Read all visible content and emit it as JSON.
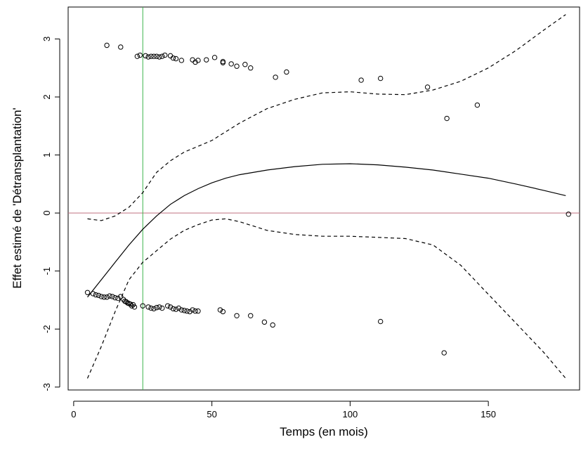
{
  "chart_data": {
    "type": "scatter",
    "title": "",
    "xlabel": "Temps (en mois)",
    "ylabel": "Effet estimé de 'Détransplantation'",
    "xlim": [
      -2,
      183
    ],
    "ylim": [
      -3.05,
      3.55
    ],
    "xticks": [
      0,
      50,
      100,
      150
    ],
    "yticks": [
      -3,
      -2,
      -1,
      0,
      1,
      2,
      3
    ],
    "grid": false,
    "legend": "none",
    "colors": {
      "points": "#000000",
      "smooth": "#000000",
      "confidence_band": "#000000",
      "zero_line": "#c07080",
      "vertical_line": "#3cb54a"
    },
    "reference_lines": {
      "horizontal_y": 0,
      "vertical_x": 25
    },
    "series": [
      {
        "kind": "points",
        "x": [
          12,
          17,
          23,
          24,
          26,
          27,
          28,
          29,
          30,
          31,
          32,
          33,
          35,
          36,
          37,
          39,
          43,
          44,
          45,
          48,
          51,
          54,
          54,
          57,
          59,
          62,
          64,
          73,
          77,
          104,
          111,
          128,
          135,
          146,
          179
        ],
        "y": [
          2.89,
          2.86,
          2.7,
          2.72,
          2.71,
          2.69,
          2.7,
          2.7,
          2.7,
          2.69,
          2.7,
          2.72,
          2.71,
          2.67,
          2.66,
          2.63,
          2.64,
          2.6,
          2.63,
          2.64,
          2.68,
          2.61,
          2.59,
          2.57,
          2.53,
          2.56,
          2.5,
          2.34,
          2.43,
          2.29,
          2.32,
          2.17,
          1.63,
          1.86,
          -0.02
        ]
      },
      {
        "kind": "points",
        "x": [
          5,
          7,
          8,
          9,
          10,
          11,
          12,
          13,
          14,
          15,
          16,
          17,
          18,
          18.5,
          19,
          19.5,
          20,
          20.5,
          21,
          21.5,
          22,
          25,
          27,
          28,
          29,
          30,
          31,
          32,
          34,
          35,
          36,
          37,
          38,
          39,
          40,
          41,
          42,
          43,
          44,
          45,
          53,
          54,
          59,
          64,
          69,
          72,
          111,
          134
        ],
        "y": [
          -1.37,
          -1.39,
          -1.41,
          -1.42,
          -1.44,
          -1.45,
          -1.45,
          -1.43,
          -1.44,
          -1.46,
          -1.47,
          -1.44,
          -1.49,
          -1.52,
          -1.53,
          -1.55,
          -1.56,
          -1.57,
          -1.6,
          -1.58,
          -1.62,
          -1.6,
          -1.62,
          -1.64,
          -1.65,
          -1.63,
          -1.62,
          -1.64,
          -1.6,
          -1.62,
          -1.65,
          -1.66,
          -1.64,
          -1.67,
          -1.68,
          -1.69,
          -1.7,
          -1.67,
          -1.69,
          -1.69,
          -1.67,
          -1.7,
          -1.77,
          -1.77,
          -1.88,
          -1.93,
          -1.87,
          -2.41
        ]
      },
      {
        "kind": "line",
        "style": "solid",
        "x": [
          5,
          10,
          15,
          20,
          25,
          30,
          35,
          40,
          45,
          50,
          55,
          60,
          70,
          80,
          90,
          100,
          110,
          120,
          130,
          140,
          150,
          160,
          170,
          178
        ],
        "y": [
          -1.45,
          -1.15,
          -0.85,
          -0.55,
          -0.28,
          -0.05,
          0.15,
          0.3,
          0.42,
          0.52,
          0.6,
          0.66,
          0.74,
          0.8,
          0.84,
          0.85,
          0.83,
          0.79,
          0.74,
          0.67,
          0.6,
          0.5,
          0.39,
          0.3
        ]
      },
      {
        "kind": "line",
        "style": "dashed",
        "x": [
          5,
          10,
          15,
          20,
          25,
          30,
          35,
          40,
          45,
          50,
          55,
          60,
          70,
          80,
          90,
          100,
          110,
          120,
          130,
          140,
          150,
          160,
          170,
          178
        ],
        "y": [
          -0.1,
          -0.13,
          -0.05,
          0.1,
          0.35,
          0.7,
          0.9,
          1.05,
          1.15,
          1.25,
          1.4,
          1.55,
          1.8,
          1.96,
          2.07,
          2.09,
          2.05,
          2.04,
          2.12,
          2.27,
          2.5,
          2.8,
          3.15,
          3.42
        ]
      },
      {
        "kind": "line",
        "style": "dashed",
        "x": [
          5,
          10,
          15,
          20,
          25,
          30,
          35,
          40,
          45,
          50,
          55,
          60,
          70,
          80,
          90,
          100,
          110,
          120,
          130,
          140,
          150,
          160,
          170,
          178
        ],
        "y": [
          -2.85,
          -2.3,
          -1.7,
          -1.15,
          -0.85,
          -0.65,
          -0.45,
          -0.3,
          -0.2,
          -0.12,
          -0.1,
          -0.15,
          -0.3,
          -0.37,
          -0.4,
          -0.4,
          -0.42,
          -0.44,
          -0.55,
          -0.9,
          -1.4,
          -1.9,
          -2.4,
          -2.85
        ]
      }
    ]
  }
}
